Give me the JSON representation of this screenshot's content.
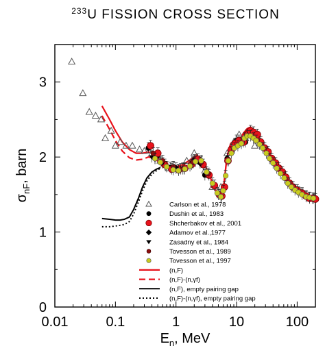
{
  "chart_data": {
    "type": "scatter",
    "title": {
      "superscript": "233",
      "text": "U FISSION CROSS SECTION"
    },
    "xlabel": {
      "main": "E",
      "sub": "n",
      "rest": ", MeV"
    },
    "ylabel": {
      "main": "σ",
      "sub": "nF",
      "rest": ", barn"
    },
    "x_scale": "log",
    "xlim": [
      0.01,
      200
    ],
    "ylim": [
      0,
      3.5
    ],
    "x_ticks": [
      {
        "v": 0.01,
        "label": "0.01"
      },
      {
        "v": 0.1,
        "label": "0.1"
      },
      {
        "v": 1,
        "label": "1"
      },
      {
        "v": 10,
        "label": "10"
      },
      {
        "v": 100,
        "label": "100"
      }
    ],
    "y_ticks": [
      {
        "v": 0,
        "label": "0"
      },
      {
        "v": 1,
        "label": "1"
      },
      {
        "v": 2,
        "label": "2"
      },
      {
        "v": 3,
        "label": "3"
      }
    ],
    "grid": false,
    "legend_position": "bottom-center",
    "colors": {
      "red": "#e8121b",
      "yellow": "#c9cc1e",
      "dark_red": "#8b0f0f",
      "black": "#000000"
    },
    "series": [
      {
        "name": "Carlson et al., 1978",
        "kind": "marker",
        "marker": "triangle-open",
        "x": [
          0.019,
          0.029,
          0.037,
          0.047,
          0.058,
          0.068,
          0.085,
          0.1,
          0.12,
          0.15,
          0.19,
          0.25,
          0.3,
          0.4,
          0.55,
          0.75,
          1.0,
          1.5,
          2.0,
          3.0,
          4.0,
          5.5,
          7,
          9,
          11,
          14,
          17,
          20
        ],
        "y": [
          3.27,
          2.85,
          2.6,
          2.55,
          2.5,
          2.25,
          2.35,
          2.15,
          2.2,
          2.15,
          2.15,
          2.1,
          2.08,
          2.05,
          1.95,
          1.85,
          1.85,
          1.95,
          2.05,
          1.82,
          1.6,
          1.6,
          2.05,
          2.2,
          2.3,
          2.25,
          2.3,
          2.15
        ]
      },
      {
        "name": "Dushin et al., 1983",
        "kind": "marker",
        "marker": "circle-black",
        "x": [
          0.35,
          0.5,
          0.8,
          1.2,
          2.0,
          3.0,
          5.0,
          7.0,
          10.0,
          14.0
        ],
        "y": [
          2.12,
          2.02,
          1.86,
          1.84,
          1.96,
          1.76,
          1.5,
          1.98,
          2.22,
          2.2
        ]
      },
      {
        "name": "Shcherbakov et al., 2001",
        "kind": "marker",
        "marker": "circle-red",
        "x": [
          0.38,
          0.5,
          0.65,
          0.85,
          1.1,
          1.4,
          1.8,
          2.3,
          2.8,
          3.5,
          4.3,
          5.2,
          5.7,
          6.3,
          7.2,
          8.2,
          9.5,
          11,
          13,
          15,
          17,
          19,
          22,
          25,
          29,
          33,
          38,
          44,
          50,
          57,
          65,
          75,
          85,
          100,
          120,
          140,
          160,
          180,
          200
        ],
        "y": [
          2.15,
          2.05,
          1.9,
          1.84,
          1.83,
          1.85,
          1.9,
          1.97,
          1.9,
          1.76,
          1.62,
          1.5,
          1.48,
          1.6,
          1.95,
          2.1,
          2.18,
          2.22,
          2.2,
          2.3,
          2.35,
          2.33,
          2.3,
          2.2,
          2.12,
          2.07,
          1.98,
          1.92,
          1.85,
          1.8,
          1.73,
          1.65,
          1.6,
          1.56,
          1.52,
          1.48,
          1.45,
          1.45,
          1.44
        ]
      },
      {
        "name": "Adamov et al.,1977",
        "kind": "marker",
        "marker": "diamond-black",
        "x": [
          0.45,
          1.0,
          2.5
        ],
        "y": [
          1.98,
          1.85,
          1.92
        ]
      },
      {
        "name": "Zasadny et al., 1984",
        "kind": "marker",
        "marker": "triangle-down-black",
        "x": [
          0.4,
          0.6,
          0.9,
          1.3,
          1.9
        ],
        "y": [
          2.0,
          1.92,
          1.86,
          1.85,
          1.92
        ]
      },
      {
        "name": "Tovesson et al., 1989",
        "kind": "marker",
        "marker": "circle-darkred",
        "x": [
          0.42,
          0.6,
          0.9,
          1.3,
          1.9,
          2.6,
          3.4
        ],
        "y": [
          2.05,
          1.95,
          1.87,
          1.84,
          1.93,
          1.93,
          1.78
        ]
      },
      {
        "name": "Tovesson et al., 1997",
        "kind": "marker",
        "marker": "circle-yellow",
        "x": [
          0.45,
          0.55,
          0.7,
          0.9,
          1.1,
          1.4,
          1.7,
          2.1,
          2.6,
          3.2,
          4.0,
          4.8,
          5.5,
          6.0,
          6.6,
          7.3,
          8.2,
          9.2,
          10.5,
          12,
          13.5,
          15,
          17,
          19,
          21,
          24,
          27,
          31,
          35,
          40,
          46,
          53,
          61,
          70,
          80,
          92,
          105,
          120,
          140,
          160,
          185
        ],
        "y": [
          1.98,
          1.93,
          1.87,
          1.83,
          1.82,
          1.84,
          1.88,
          1.94,
          1.95,
          1.8,
          1.65,
          1.52,
          1.47,
          1.55,
          1.75,
          1.95,
          2.05,
          2.12,
          2.15,
          2.18,
          2.25,
          2.28,
          2.28,
          2.25,
          2.22,
          2.17,
          2.12,
          2.05,
          1.98,
          1.92,
          1.85,
          1.78,
          1.72,
          1.65,
          1.6,
          1.56,
          1.53,
          1.5,
          1.47,
          1.46,
          1.45
        ]
      },
      {
        "name": "(n,F)",
        "kind": "line",
        "style": "solid-red",
        "x": [
          0.06,
          0.08,
          0.1,
          0.13,
          0.17,
          0.22,
          0.28,
          0.35,
          0.45,
          0.6,
          0.8,
          1.0,
          1.3,
          1.7,
          2.2,
          2.7,
          3.3,
          4.0,
          4.7,
          5.3,
          5.8,
          6.2,
          6.7,
          7.3,
          8.0,
          9.0,
          10,
          11.5,
          13,
          15,
          17,
          19,
          22,
          26,
          30,
          35,
          41,
          48,
          56,
          65,
          75,
          87,
          100,
          120,
          140,
          165,
          200
        ],
        "y": [
          2.68,
          2.5,
          2.35,
          2.2,
          2.1,
          2.05,
          2.05,
          2.07,
          2.03,
          1.92,
          1.87,
          1.87,
          1.9,
          1.96,
          2.03,
          1.95,
          1.82,
          1.66,
          1.53,
          1.48,
          1.5,
          1.65,
          1.9,
          2.08,
          2.18,
          2.22,
          2.2,
          2.25,
          2.32,
          2.38,
          2.4,
          2.35,
          2.3,
          2.2,
          2.12,
          2.04,
          1.96,
          1.88,
          1.8,
          1.72,
          1.65,
          1.59,
          1.55,
          1.51,
          1.48,
          1.47,
          1.46
        ]
      },
      {
        "name": "(n,F)-(n,γf)",
        "kind": "line",
        "style": "dashed-red",
        "x": [
          0.06,
          0.08,
          0.1,
          0.13,
          0.17,
          0.22,
          0.28,
          0.35,
          0.45,
          0.6,
          0.8,
          1.0,
          1.3,
          1.7,
          2.2,
          2.7,
          3.3,
          4.0,
          4.7,
          5.3,
          5.8,
          6.2,
          6.7,
          7.3,
          8.0,
          9.0,
          10,
          11.5,
          13,
          15,
          17,
          19,
          22,
          26,
          30,
          35,
          41,
          48,
          56,
          65,
          75,
          87,
          100,
          120,
          140,
          165,
          200
        ],
        "y": [
          2.55,
          2.37,
          2.22,
          2.08,
          1.99,
          1.96,
          1.97,
          2.0,
          1.98,
          1.88,
          1.83,
          1.83,
          1.87,
          1.93,
          2.0,
          1.93,
          1.8,
          1.65,
          1.52,
          1.47,
          1.49,
          1.64,
          1.89,
          2.07,
          2.17,
          2.21,
          2.19,
          2.24,
          2.31,
          2.37,
          2.39,
          2.34,
          2.29,
          2.19,
          2.11,
          2.03,
          1.95,
          1.87,
          1.79,
          1.71,
          1.64,
          1.58,
          1.54,
          1.5,
          1.47,
          1.46,
          1.45
        ]
      },
      {
        "name": "(n,F), empty pairing gap",
        "kind": "line",
        "style": "solid-black",
        "x": [
          0.06,
          0.08,
          0.1,
          0.12,
          0.14,
          0.17,
          0.2,
          0.24,
          0.28,
          0.33,
          0.4,
          0.48,
          0.55
        ],
        "y": [
          1.18,
          1.17,
          1.16,
          1.16,
          1.17,
          1.2,
          1.3,
          1.45,
          1.6,
          1.72,
          1.8,
          1.84,
          1.86
        ]
      },
      {
        "name": "(n,F)-(n,γf), empty pairing gap",
        "kind": "line",
        "style": "dotted-black",
        "x": [
          0.06,
          0.08,
          0.1,
          0.12,
          0.14,
          0.17,
          0.2,
          0.24,
          0.28,
          0.33,
          0.4,
          0.48,
          0.55
        ],
        "y": [
          1.07,
          1.07,
          1.08,
          1.09,
          1.1,
          1.14,
          1.24,
          1.4,
          1.55,
          1.68,
          1.77,
          1.82,
          1.85
        ]
      }
    ]
  }
}
